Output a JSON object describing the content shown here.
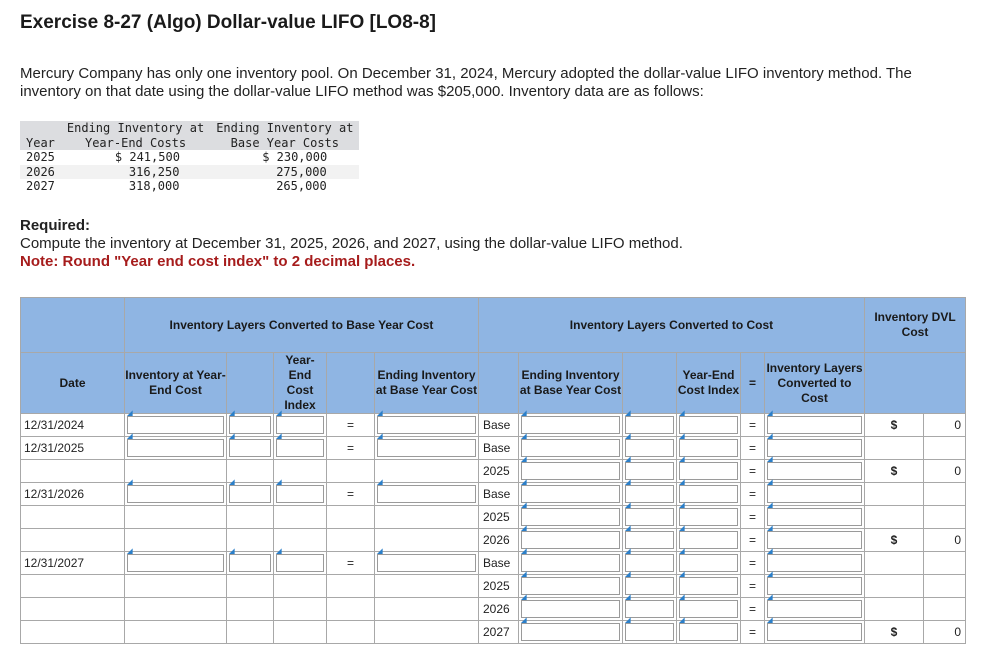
{
  "title": "Exercise 8-27 (Algo) Dollar-value LIFO [LO8-8]",
  "intro": "Mercury Company has only one inventory pool. On December 31, 2024, Mercury adopted the dollar-value LIFO inventory method. The inventory on that date using the dollar-value LIFO method was $205,000. Inventory data are as follows:",
  "data_table": {
    "headers": {
      "year": "Year",
      "eic_line1": "Ending Inventory at",
      "eic_line2": "Year-End Costs",
      "ebc_line1": "Ending Inventory at",
      "ebc_line2": "Base Year Costs"
    },
    "rows": [
      {
        "year": "2025",
        "year_end": "$ 241,500",
        "base": "$ 230,000"
      },
      {
        "year": "2026",
        "year_end": "316,250",
        "base": "275,000"
      },
      {
        "year": "2027",
        "year_end": "318,000",
        "base": "265,000"
      }
    ]
  },
  "required": {
    "heading": "Required:",
    "text": "Compute the inventory at December 31, 2025, 2026, and 2027, using the dollar-value LIFO method.",
    "note": "Note: Round \"Year end cost index\" to 2 decimal places."
  },
  "grid": {
    "group1": "Inventory Layers Converted to Base Year Cost",
    "group2": "Inventory Layers Converted to Cost",
    "dvl_header": "Inventory DVL Cost",
    "col_date": "Date",
    "col_inv_year_end": "Inventory at Year-End Cost",
    "col_yec_index": "Year-End Cost Index",
    "col_end_base": "Ending Inventory at Base Year Cost",
    "col_end_base2": "Ending Inventory at Base Year Cost",
    "col_yec_index2": "Year-End Cost Index",
    "col_equals": "=",
    "col_layers": "Inventory Layers Converted to Cost",
    "rows": [
      {
        "date": "12/31/2024",
        "label": "Base",
        "eq1": "=",
        "eq2": "=",
        "dollar": "$",
        "dvl": "0"
      },
      {
        "date": "12/31/2025",
        "label": "Base",
        "eq1": "=",
        "eq2": "="
      },
      {
        "date": "",
        "label": "2025",
        "eq2": "=",
        "dollar": "$",
        "dvl": "0"
      },
      {
        "date": "12/31/2026",
        "label": "Base",
        "eq1": "=",
        "eq2": "="
      },
      {
        "date": "",
        "label": "2025",
        "eq2": "="
      },
      {
        "date": "",
        "label": "2026",
        "eq2": "=",
        "dollar": "$",
        "dvl": "0"
      },
      {
        "date": "12/31/2027",
        "label": "Base",
        "eq1": "=",
        "eq2": "="
      },
      {
        "date": "",
        "label": "2025",
        "eq2": "="
      },
      {
        "date": "",
        "label": "2026",
        "eq2": "="
      },
      {
        "date": "",
        "label": "2027",
        "eq2": "=",
        "dollar": "$",
        "dvl": "0"
      }
    ]
  }
}
